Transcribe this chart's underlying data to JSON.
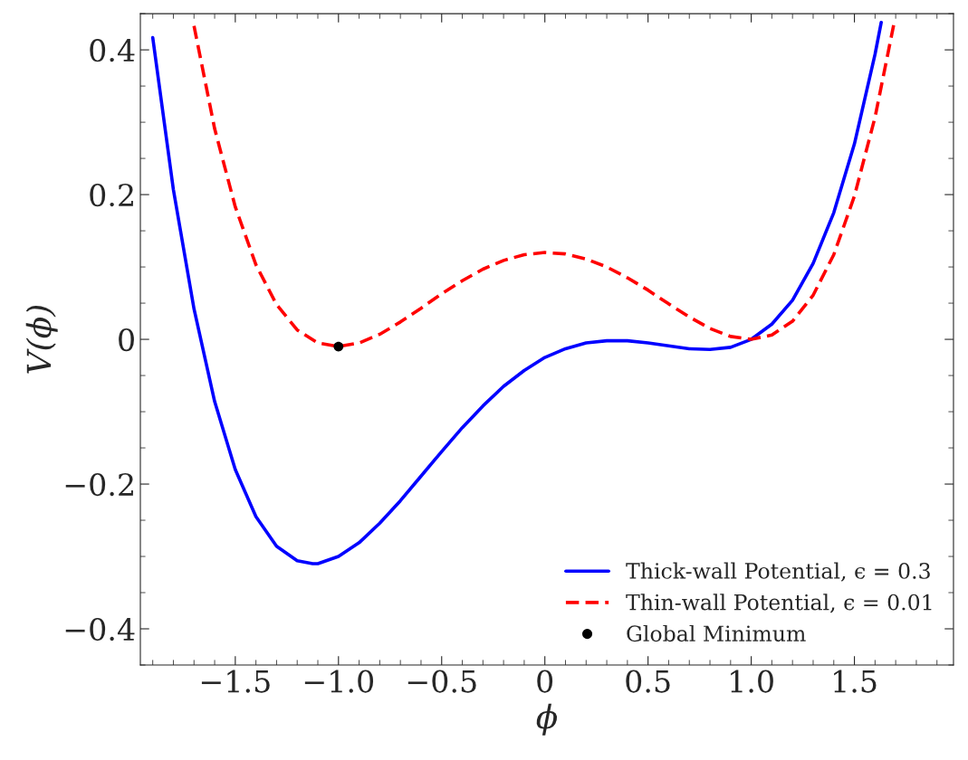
{
  "chart_data": {
    "type": "line",
    "xlabel": "ϕ",
    "ylabel": "V(ϕ)",
    "xlim": [
      -1.96,
      1.98
    ],
    "ylim": [
      -0.45,
      0.45
    ],
    "xticks": [
      {
        "value": -1.5,
        "label": "−1.5"
      },
      {
        "value": -1.0,
        "label": "−1.0"
      },
      {
        "value": -0.5,
        "label": "−0.5"
      },
      {
        "value": 0,
        "label": "0"
      },
      {
        "value": 0.5,
        "label": "0.5"
      },
      {
        "value": 1.0,
        "label": "1.0"
      },
      {
        "value": 1.5,
        "label": "1.5"
      }
    ],
    "yticks": [
      {
        "value": -0.4,
        "label": "−0.4"
      },
      {
        "value": -0.2,
        "label": "−0.2"
      },
      0,
      0.2,
      0.4
    ],
    "grid": false,
    "legend": "bottom right",
    "series": [
      {
        "name": "Thick-wall Potential, ϵ = 0.3",
        "color": "#0000ff",
        "line_style": "solid",
        "x": [
          -1.9,
          -1.8,
          -1.7,
          -1.6,
          -1.5,
          -1.4,
          -1.3,
          -1.2,
          -1.125,
          -1.1,
          -1.0,
          -0.9,
          -0.8,
          -0.7,
          -0.6,
          -0.5,
          -0.4,
          -0.3,
          -0.2,
          -0.1,
          0,
          0.1,
          0.2,
          0.3,
          0.4,
          0.5,
          0.6,
          0.7,
          0.8,
          0.9,
          1.0,
          1.1,
          1.2,
          1.3,
          1.4,
          1.5,
          1.6,
          1.63
        ],
        "values": [
          0.417,
          0.207,
          0.042,
          -0.086,
          -0.18,
          -0.245,
          -0.286,
          -0.306,
          -0.31,
          -0.31,
          -0.3,
          -0.281,
          -0.254,
          -0.223,
          -0.189,
          -0.155,
          -0.122,
          -0.092,
          -0.065,
          -0.043,
          -0.025,
          -0.013,
          -0.005,
          -0.002,
          -0.002,
          -0.005,
          -0.009,
          -0.013,
          -0.014,
          -0.011,
          0.0,
          0.021,
          0.054,
          0.105,
          0.175,
          0.27,
          0.394,
          0.438
        ]
      },
      {
        "name": "Thin-wall Potential, ϵ = 0.01",
        "color": "#ff0000",
        "line_style": "dashed",
        "x": [
          -1.7,
          -1.6,
          -1.5,
          -1.4,
          -1.3,
          -1.2,
          -1.1,
          -1.0,
          -0.9,
          -0.8,
          -0.7,
          -0.6,
          -0.5,
          -0.4,
          -0.3,
          -0.2,
          -0.1,
          0,
          0.1,
          0.2,
          0.3,
          0.4,
          0.5,
          0.6,
          0.7,
          0.8,
          0.9,
          1.0,
          1.1,
          1.2,
          1.3,
          1.4,
          1.5,
          1.6,
          1.69
        ],
        "values": [
          0.433,
          0.291,
          0.183,
          0.103,
          0.048,
          0.013,
          -0.005,
          -0.01,
          -0.005,
          0.007,
          0.024,
          0.043,
          0.063,
          0.081,
          0.097,
          0.109,
          0.117,
          0.12,
          0.118,
          0.111,
          0.1,
          0.085,
          0.068,
          0.049,
          0.031,
          0.015,
          0.004,
          0.0,
          0.006,
          0.025,
          0.061,
          0.117,
          0.198,
          0.307,
          0.434
        ]
      },
      {
        "name": "Global Minimum",
        "type": "scatter",
        "color": "#000000",
        "marker": "circle",
        "x": [
          -1.0
        ],
        "values": [
          -0.01
        ]
      }
    ]
  }
}
